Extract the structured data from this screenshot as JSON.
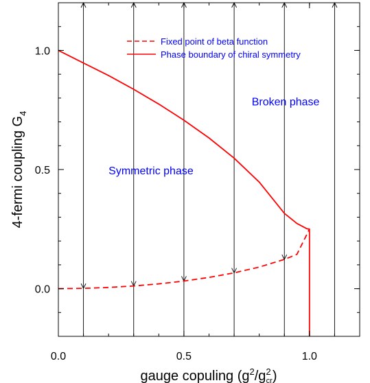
{
  "chart_data": {
    "type": "line",
    "title": "",
    "xlabel": "gauge copuling (g",
    "xlabel_sup1": "2",
    "xlabel_mid": "/g",
    "xlabel_sup2": "2",
    "xlabel_sub": "cr",
    "xlabel_end": ")",
    "ylabel": "4-fermi coupling G",
    "ylabel_sub": "4",
    "xlim": [
      0.0,
      1.2
    ],
    "ylim": [
      -0.2,
      1.2
    ],
    "xticks": [
      0.0,
      0.5,
      1.0
    ],
    "xtick_labels": [
      "0.0",
      "0.5",
      "1.0"
    ],
    "yticks": [
      0.0,
      0.5,
      1.0
    ],
    "ytick_labels": [
      "0.0",
      "0.5",
      "1.0"
    ],
    "grid": false,
    "legend_position": "top-right",
    "series": [
      {
        "name": "Fixed point of beta function",
        "style": "dashed",
        "color": "#ff0000",
        "x": [
          0.0,
          0.1,
          0.2,
          0.3,
          0.4,
          0.5,
          0.6,
          0.7,
          0.8,
          0.9,
          0.95,
          1.0
        ],
        "y": [
          0.0,
          0.0013,
          0.0051,
          0.0113,
          0.0202,
          0.032,
          0.0472,
          0.0664,
          0.0907,
          0.1228,
          0.144,
          0.25
        ]
      },
      {
        "name": "Phase boundary of chiral symmetry",
        "style": "solid",
        "color": "#ff0000",
        "x": [
          0.0,
          0.1,
          0.2,
          0.3,
          0.4,
          0.5,
          0.6,
          0.7,
          0.8,
          0.9,
          0.95,
          0.99,
          1.0,
          1.0
        ],
        "y": [
          1.0,
          0.9472,
          0.8944,
          0.8367,
          0.7746,
          0.7071,
          0.6325,
          0.5477,
          0.4472,
          0.3162,
          0.2736,
          0.2513,
          0.25,
          -0.2
        ]
      }
    ],
    "flow_lines": {
      "x": [
        0.1,
        0.3,
        0.5,
        0.7,
        0.9,
        1.1
      ],
      "color": "#000000",
      "arrows": [
        {
          "x": 0.1,
          "y": 0.0013,
          "direction": "down"
        },
        {
          "x": 0.3,
          "y": 0.0113,
          "direction": "down"
        },
        {
          "x": 0.5,
          "y": 0.032,
          "direction": "down"
        },
        {
          "x": 0.7,
          "y": 0.0664,
          "direction": "down"
        },
        {
          "x": 0.9,
          "y": 0.1228,
          "direction": "down"
        },
        {
          "x": 0.1,
          "y": 1.2,
          "direction": "up"
        },
        {
          "x": 0.3,
          "y": 1.2,
          "direction": "up"
        },
        {
          "x": 0.5,
          "y": 1.2,
          "direction": "up"
        },
        {
          "x": 0.7,
          "y": 1.2,
          "direction": "up"
        },
        {
          "x": 0.9,
          "y": 1.2,
          "direction": "up"
        },
        {
          "x": 1.1,
          "y": 1.2,
          "direction": "up"
        }
      ]
    },
    "annotations": [
      {
        "text": "Broken phase",
        "x": 0.77,
        "y": 0.77
      },
      {
        "text": "Symmetric phase",
        "x": 0.2,
        "y": 0.48
      }
    ]
  }
}
